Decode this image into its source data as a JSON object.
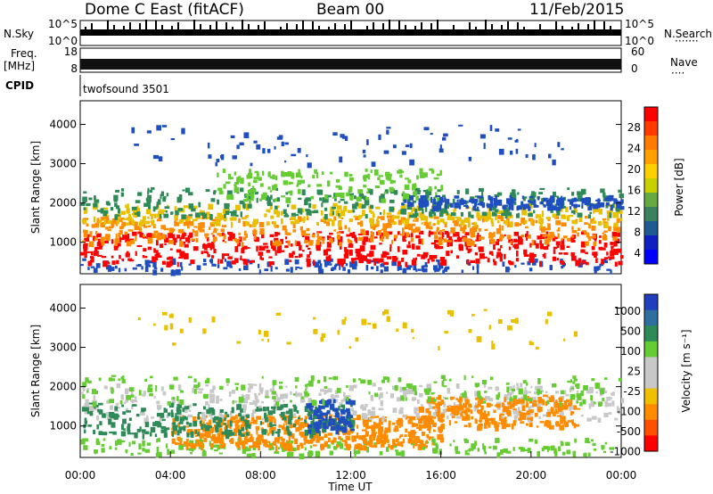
{
  "header": {
    "station": "Dome C East (fitACF)",
    "beam": "Beam 00",
    "date": "11/Feb/2015"
  },
  "left_labels": {
    "nsky": "N.Sky",
    "freq": "Freq.",
    "freq_unit": "[MHz]",
    "cpid": "CPID"
  },
  "right_labels": {
    "nsearch": "N.Search",
    "nave": "Nave"
  },
  "cpid_name": "twofsound 3501",
  "colors": {
    "red": "#ff0000",
    "orange": "#ff8c00",
    "yellow": "#e8c000",
    "green": "#66cc33",
    "darkgreen": "#2e8b57",
    "blue": "#1f4fbf",
    "grey": "#c8c8c8"
  },
  "chart_data": [
    {
      "type": "line",
      "name_label": "N.Sky / N.Search",
      "yticks": [
        "10^5",
        "10^0"
      ],
      "right_yticks": [
        "10^5",
        "10^0"
      ],
      "xlim": [
        "00:00",
        "24:00"
      ]
    },
    {
      "type": "line",
      "name_label": "Freq. [MHz] / Nave",
      "yticks": [
        "18",
        "8"
      ],
      "right_yticks": [
        "60",
        "0"
      ],
      "xlim": [
        "00:00",
        "24:00"
      ]
    },
    {
      "type": "heatmap",
      "ylabel": "Slant Range [km]",
      "yticks": [
        1000,
        2000,
        3000,
        4000
      ],
      "ylim": [
        200,
        4600
      ],
      "xlim": [
        "00:00",
        "24:00"
      ],
      "colorbar_label": "Power [dB]",
      "colorbar_ticks": [
        "4",
        "8",
        "12",
        "16",
        "20",
        "24",
        "28"
      ]
    },
    {
      "type": "heatmap",
      "ylabel": "Slant Range [km]",
      "yticks": [
        1000,
        2000,
        3000,
        4000
      ],
      "ylim": [
        200,
        4600
      ],
      "xlabel": "Time UT",
      "xticks": [
        "00:00",
        "04:00",
        "08:00",
        "12:00",
        "16:00",
        "20:00",
        "00:00"
      ],
      "colorbar_label": "Velocity [m s⁻¹]",
      "colorbar_ticks": [
        "1000",
        "500",
        "100",
        "25",
        "-25",
        "-100",
        "-500",
        "-1000"
      ]
    }
  ]
}
